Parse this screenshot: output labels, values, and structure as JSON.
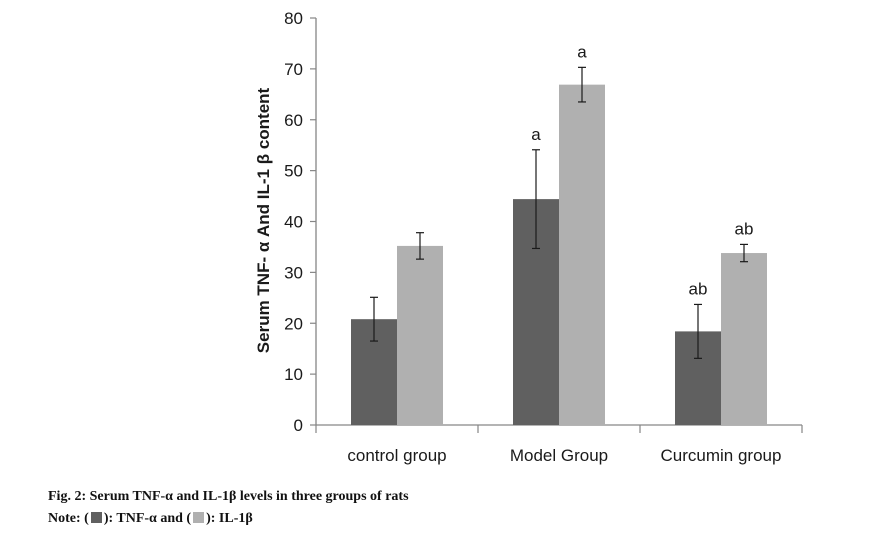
{
  "chart_data": {
    "type": "bar",
    "title": "",
    "xlabel": "",
    "ylabel": "Serum TNF- α And IL-1 β content",
    "ylim": [
      0,
      80
    ],
    "yticks": [
      0,
      10,
      20,
      30,
      40,
      50,
      60,
      70,
      80
    ],
    "grid": false,
    "categories": [
      "control group",
      "Model Group",
      "Curcumin group"
    ],
    "series": [
      {
        "name": "TNF-α",
        "color": "#606060",
        "values": [
          20.8,
          44.4,
          18.4
        ],
        "errors": [
          4.3,
          9.7,
          5.3
        ],
        "annotations": [
          "",
          "a",
          "ab"
        ]
      },
      {
        "name": "IL-1β",
        "color": "#b0b0b0",
        "values": [
          35.2,
          66.9,
          33.8
        ],
        "errors": [
          2.6,
          3.4,
          1.7
        ],
        "annotations": [
          "",
          "a",
          "ab"
        ]
      }
    ]
  },
  "caption": {
    "title": "Fig. 2: Serum TNF-α and IL-1β levels in three groups of rats",
    "note_prefix": "Note: (",
    "note_mid1": "): TNF-α and (",
    "note_mid2": "): IL-1β"
  }
}
